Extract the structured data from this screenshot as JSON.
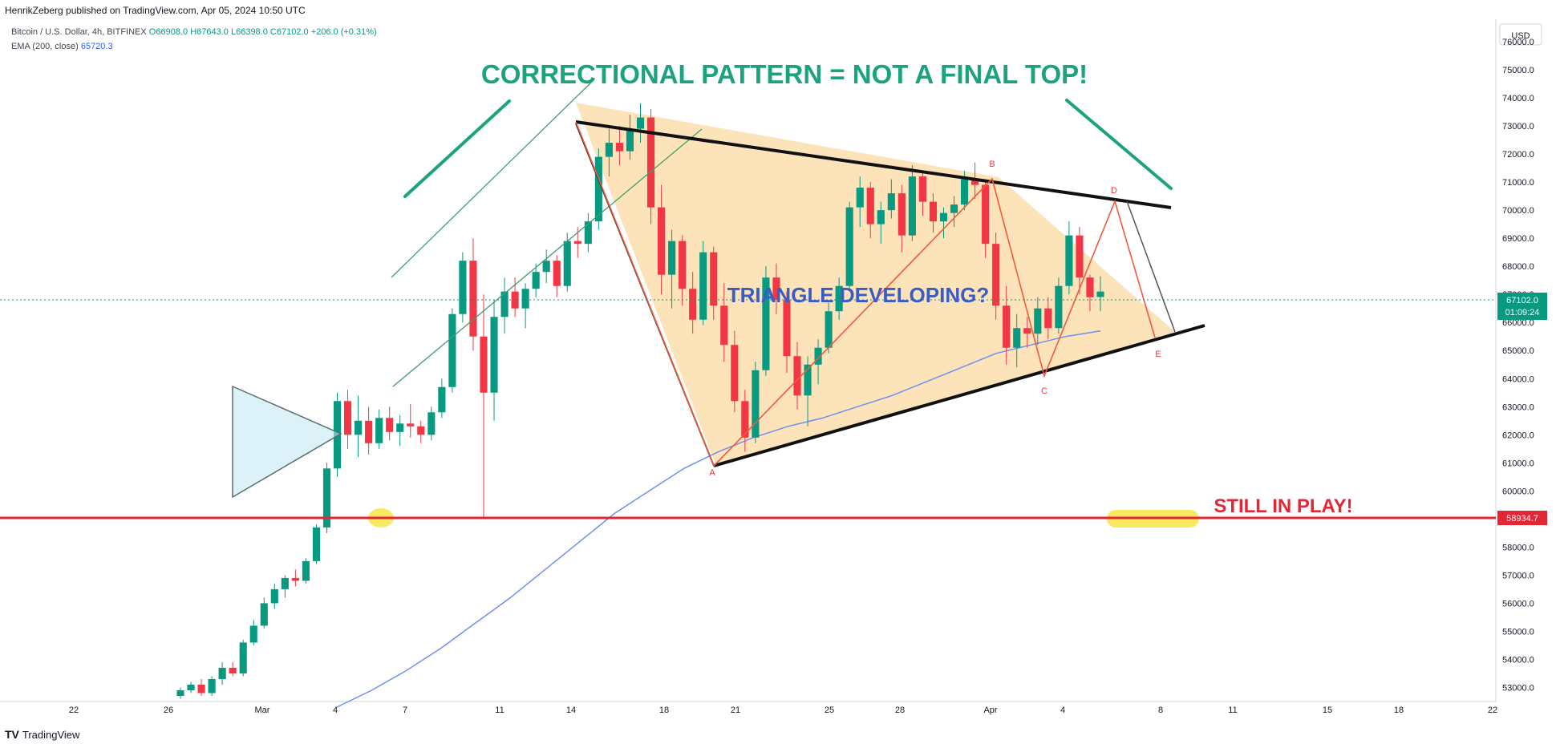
{
  "header": {
    "publisher": "HenrikZeberg published on TradingView.com, Apr 05, 2024 10:50 UTC",
    "symbol": "Bitcoin / U.S. Dollar, 4h, BITFINEX",
    "ohlc": [
      "O66908.0",
      "H67643.0",
      "L66398.0",
      "C67102.0",
      "+206.0 (+0.31%)"
    ],
    "ema_label": "EMA (200, close)",
    "ema_value": "65720.3"
  },
  "footer": {
    "brand": "TradingView",
    "logo": "TV"
  },
  "colors": {
    "up": "#089981",
    "down": "#f23645",
    "ema": "#6d8ff2",
    "annotation_green": "#1aa37e",
    "annotation_blue": "#3b5cc4",
    "support_red": "#e32636",
    "triangle_fill": "#fbd9a3",
    "highlight": "#f7e23b"
  },
  "chart_data": {
    "type": "candlestick",
    "currency": "USD",
    "ylim": [
      52500,
      76800
    ],
    "y_ticks": [
      53000,
      54000,
      55000,
      56000,
      57000,
      58000,
      59000,
      60000,
      61000,
      62000,
      63000,
      64000,
      65000,
      66000,
      67000,
      68000,
      69000,
      70000,
      71000,
      72000,
      73000,
      74000,
      75000,
      76000
    ],
    "x_ticks": [
      "22",
      "26",
      "Mar",
      "4",
      "7",
      "11",
      "14",
      "18",
      "21",
      "25",
      "28",
      "Apr",
      "4",
      "8",
      "11",
      "15",
      "18",
      "22"
    ],
    "price_label": "67102.0",
    "countdown": "01:09:24",
    "support_label": "58934.7",
    "support_level": 58934.7,
    "annotations": {
      "title": "CORRECTIONAL PATTERN = NOT A FINAL TOP!",
      "triangle": "TRIANGLE DEVELOPING?",
      "still": "STILL IN PLAY!",
      "waves": [
        "A",
        "B",
        "C",
        "D",
        "E"
      ]
    },
    "candles_approx": [
      [
        52700,
        53000,
        52600,
        52900
      ],
      [
        52900,
        53200,
        52800,
        53100
      ],
      [
        53100,
        53300,
        52700,
        52800
      ],
      [
        52800,
        53400,
        52700,
        53300
      ],
      [
        53300,
        53900,
        53100,
        53700
      ],
      [
        53700,
        53900,
        53400,
        53500
      ],
      [
        53500,
        54700,
        53400,
        54600
      ],
      [
        54600,
        55400,
        54500,
        55200
      ],
      [
        55200,
        56200,
        55100,
        56000
      ],
      [
        56000,
        56700,
        55800,
        56500
      ],
      [
        56500,
        57000,
        56200,
        56900
      ],
      [
        56900,
        57200,
        56600,
        56800
      ],
      [
        56800,
        57600,
        56700,
        57500
      ],
      [
        57500,
        58800,
        57400,
        58700
      ],
      [
        58700,
        61000,
        58500,
        60800
      ],
      [
        60800,
        63500,
        60500,
        63200
      ],
      [
        63200,
        63600,
        61500,
        62000
      ],
      [
        62000,
        63400,
        61200,
        62500
      ],
      [
        62500,
        63000,
        61300,
        61700
      ],
      [
        61700,
        62900,
        61500,
        62600
      ],
      [
        62600,
        63000,
        61800,
        62100
      ],
      [
        62100,
        62700,
        61600,
        62400
      ],
      [
        62400,
        63100,
        61900,
        62300
      ],
      [
        62300,
        62500,
        61700,
        62000
      ],
      [
        62000,
        63000,
        61800,
        62800
      ],
      [
        62800,
        64000,
        62600,
        63700
      ],
      [
        63700,
        66500,
        63500,
        66300
      ],
      [
        66300,
        68500,
        66000,
        68200
      ],
      [
        68200,
        69000,
        65000,
        65500
      ],
      [
        65500,
        67000,
        59000,
        63500
      ],
      [
        63500,
        66800,
        62500,
        66200
      ],
      [
        66200,
        67600,
        65600,
        67100
      ],
      [
        67100,
        67600,
        66200,
        66500
      ],
      [
        66500,
        67400,
        65800,
        67200
      ],
      [
        67200,
        68100,
        66900,
        67800
      ],
      [
        67800,
        68600,
        67400,
        68200
      ],
      [
        68200,
        68400,
        66900,
        67300
      ],
      [
        67300,
        69200,
        67100,
        68900
      ],
      [
        68900,
        69400,
        68300,
        68800
      ],
      [
        68800,
        69900,
        68500,
        69600
      ],
      [
        69600,
        72200,
        69300,
        71900
      ],
      [
        71900,
        72900,
        71200,
        72400
      ],
      [
        72400,
        73000,
        71600,
        72100
      ],
      [
        72100,
        73400,
        71800,
        72900
      ],
      [
        72900,
        73800,
        72400,
        73300
      ],
      [
        73300,
        73600,
        69500,
        70100
      ],
      [
        70100,
        70900,
        67000,
        67700
      ],
      [
        67700,
        69300,
        66500,
        68900
      ],
      [
        68900,
        69100,
        66600,
        67200
      ],
      [
        67200,
        67800,
        65600,
        66100
      ],
      [
        66100,
        68900,
        65900,
        68500
      ],
      [
        68500,
        68700,
        66100,
        66600
      ],
      [
        66600,
        67400,
        64600,
        65200
      ],
      [
        65200,
        65700,
        62800,
        63200
      ],
      [
        63200,
        63600,
        61400,
        61900
      ],
      [
        61900,
        64600,
        61700,
        64300
      ],
      [
        64300,
        68000,
        64100,
        67600
      ],
      [
        67600,
        68100,
        66300,
        66800
      ],
      [
        66800,
        67100,
        64200,
        64800
      ],
      [
        64800,
        65300,
        62900,
        63400
      ],
      [
        63400,
        64800,
        62300,
        64500
      ],
      [
        64500,
        65400,
        63800,
        65100
      ],
      [
        65100,
        66700,
        64900,
        66400
      ],
      [
        66400,
        67600,
        66100,
        67300
      ],
      [
        67300,
        70300,
        67100,
        70100
      ],
      [
        70100,
        71200,
        69400,
        70800
      ],
      [
        70800,
        71000,
        69000,
        69500
      ],
      [
        69500,
        70300,
        68800,
        70000
      ],
      [
        70000,
        71100,
        69700,
        70600
      ],
      [
        70600,
        70900,
        68500,
        69100
      ],
      [
        69100,
        71600,
        68900,
        71200
      ],
      [
        71200,
        71400,
        69800,
        70300
      ],
      [
        70300,
        70600,
        69200,
        69600
      ],
      [
        69600,
        70100,
        69000,
        69900
      ],
      [
        69900,
        70500,
        69400,
        70200
      ],
      [
        70200,
        71400,
        70000,
        71100
      ],
      [
        71100,
        71700,
        70400,
        70900
      ],
      [
        70900,
        71000,
        68300,
        68800
      ],
      [
        68800,
        69200,
        66100,
        66600
      ],
      [
        66600,
        67300,
        64500,
        65100
      ],
      [
        65100,
        66300,
        64400,
        65800
      ],
      [
        65800,
        66200,
        65100,
        65600
      ],
      [
        65600,
        66900,
        65200,
        66500
      ],
      [
        66500,
        66900,
        65400,
        65800
      ],
      [
        65800,
        67600,
        65600,
        67300
      ],
      [
        67300,
        69600,
        67000,
        69100
      ],
      [
        69100,
        69400,
        67000,
        67600
      ],
      [
        67600,
        67700,
        66400,
        66900
      ],
      [
        66908,
        67643,
        66398,
        67102
      ]
    ],
    "ema_approx": [
      52300,
      52900,
      53600,
      54400,
      55300,
      56200,
      57200,
      58200,
      59200,
      60000,
      60800,
      61400,
      61900,
      62300,
      62600,
      63000,
      63400,
      63900,
      64400,
      64900,
      65200,
      65500,
      65700
    ]
  }
}
